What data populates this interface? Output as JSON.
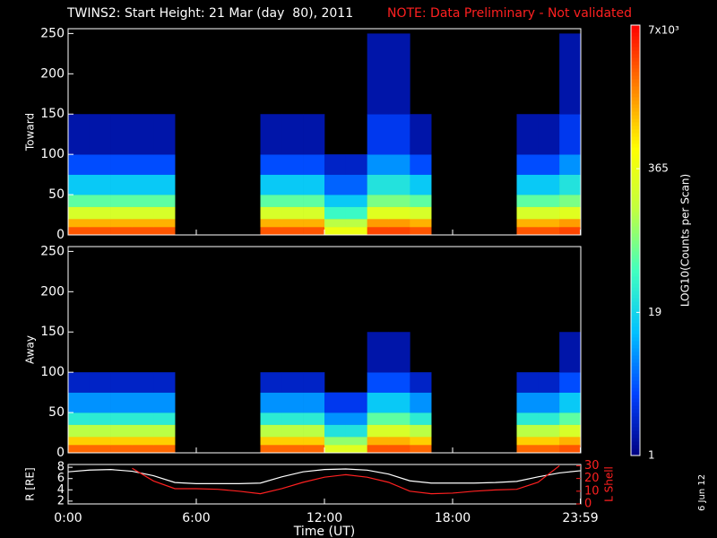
{
  "title": "TWINS2: Start Height: 21 Mar (day  80), 2011",
  "note": "NOTE: Data Preliminary - Not validated",
  "side_text": "6 Jun 12",
  "chart_data": [
    {
      "type": "heatmap",
      "ylabel": "Toward",
      "xlim": [
        0,
        24
      ],
      "ylim": [
        0,
        256
      ],
      "yticks": [
        0,
        50,
        100,
        150,
        200,
        250
      ],
      "xticks": [
        0,
        6,
        12,
        18,
        23.98
      ],
      "xbins": [
        0,
        1,
        2,
        3,
        4,
        5,
        6,
        7,
        8,
        9,
        10,
        11,
        12,
        13,
        14,
        15,
        16,
        17,
        18,
        19,
        20,
        21,
        22,
        23,
        24
      ],
      "ybins": [
        0,
        10,
        20,
        35,
        50,
        75,
        100,
        150,
        250
      ],
      "z": [
        [
          3000,
          3000,
          3000,
          3000,
          3000,
          null,
          null,
          null,
          null,
          3000,
          3000,
          3000,
          400,
          400,
          3500,
          3500,
          3000,
          null,
          null,
          null,
          null,
          3000,
          3000,
          3500
        ],
        [
          1200,
          1200,
          1200,
          1200,
          1200,
          null,
          null,
          null,
          null,
          1200,
          1200,
          1200,
          150,
          150,
          1500,
          1500,
          1200,
          null,
          null,
          null,
          null,
          1200,
          1200,
          1500
        ],
        [
          250,
          250,
          250,
          250,
          250,
          null,
          null,
          null,
          null,
          250,
          250,
          250,
          40,
          40,
          300,
          300,
          250,
          null,
          null,
          null,
          null,
          250,
          250,
          300
        ],
        [
          60,
          60,
          60,
          60,
          60,
          null,
          null,
          null,
          null,
          60,
          60,
          60,
          15,
          15,
          80,
          80,
          60,
          null,
          null,
          null,
          null,
          60,
          60,
          80
        ],
        [
          15,
          15,
          15,
          15,
          15,
          null,
          null,
          null,
          null,
          15,
          15,
          15,
          5,
          5,
          25,
          25,
          15,
          null,
          null,
          null,
          null,
          15,
          15,
          25
        ],
        [
          4,
          4,
          4,
          4,
          4,
          null,
          null,
          null,
          null,
          4,
          4,
          4,
          2,
          2,
          8,
          8,
          4,
          null,
          null,
          null,
          null,
          4,
          4,
          8
        ],
        [
          1.5,
          1.5,
          1.5,
          1.5,
          1.5,
          null,
          null,
          null,
          null,
          1.5,
          1.5,
          1.5,
          null,
          null,
          3,
          3,
          1.5,
          null,
          null,
          null,
          null,
          1.5,
          1.5,
          3
        ],
        [
          null,
          null,
          null,
          null,
          null,
          null,
          null,
          null,
          null,
          null,
          null,
          null,
          null,
          null,
          1.5,
          1.5,
          null,
          null,
          null,
          null,
          null,
          null,
          null,
          1.5
        ]
      ]
    },
    {
      "type": "heatmap",
      "ylabel": "Away",
      "xlim": [
        0,
        24
      ],
      "ylim": [
        0,
        256
      ],
      "yticks": [
        0,
        50,
        100,
        150,
        200,
        250
      ],
      "xticks": [
        0,
        6,
        12,
        18,
        23.98
      ],
      "xbins": [
        0,
        1,
        2,
        3,
        4,
        5,
        6,
        7,
        8,
        9,
        10,
        11,
        12,
        13,
        14,
        15,
        16,
        17,
        18,
        19,
        20,
        21,
        22,
        23,
        24
      ],
      "ybins": [
        0,
        10,
        20,
        35,
        50,
        75,
        100,
        150,
        250
      ],
      "z": [
        [
          2500,
          2500,
          2500,
          2500,
          2500,
          null,
          null,
          null,
          null,
          2500,
          2500,
          2500,
          300,
          300,
          3000,
          3000,
          2500,
          null,
          null,
          null,
          null,
          2500,
          2500,
          3000
        ],
        [
          900,
          900,
          900,
          900,
          900,
          null,
          null,
          null,
          null,
          900,
          900,
          900,
          100,
          100,
          1200,
          1200,
          900,
          null,
          null,
          null,
          null,
          900,
          900,
          1200
        ],
        [
          150,
          150,
          150,
          150,
          150,
          null,
          null,
          null,
          null,
          150,
          150,
          150,
          25,
          25,
          250,
          250,
          150,
          null,
          null,
          null,
          null,
          150,
          150,
          250
        ],
        [
          30,
          30,
          30,
          30,
          30,
          null,
          null,
          null,
          null,
          30,
          30,
          30,
          8,
          8,
          60,
          60,
          30,
          null,
          null,
          null,
          null,
          30,
          30,
          60
        ],
        [
          8,
          8,
          8,
          8,
          8,
          null,
          null,
          null,
          null,
          8,
          8,
          8,
          3,
          3,
          15,
          15,
          8,
          null,
          null,
          null,
          null,
          8,
          8,
          15
        ],
        [
          2,
          2,
          2,
          2,
          2,
          null,
          null,
          null,
          null,
          2,
          2,
          2,
          null,
          null,
          4,
          4,
          2,
          null,
          null,
          null,
          null,
          2,
          2,
          4
        ],
        [
          null,
          null,
          null,
          null,
          null,
          null,
          null,
          null,
          null,
          null,
          null,
          null,
          null,
          null,
          1.5,
          1.5,
          null,
          null,
          null,
          null,
          null,
          null,
          null,
          1.5
        ],
        [
          null,
          null,
          null,
          null,
          null,
          null,
          null,
          null,
          null,
          null,
          null,
          null,
          null,
          null,
          null,
          null,
          null,
          null,
          null,
          null,
          null,
          null,
          null,
          null
        ]
      ]
    },
    {
      "type": "line",
      "xlabel": "Time (UT)",
      "ylabel": "R [RE]",
      "y2label": "L Shell",
      "x": [
        0,
        1,
        2,
        3,
        4,
        5,
        6,
        7,
        8,
        9,
        10,
        11,
        12,
        13,
        14,
        15,
        16,
        17,
        18,
        19,
        20,
        21,
        22,
        23,
        24
      ],
      "xlim": [
        0,
        24
      ],
      "xticks": [
        {
          "value": 0,
          "label": "0:00"
        },
        {
          "value": 6,
          "label": "6:00"
        },
        {
          "value": 12,
          "label": "12:00"
        },
        {
          "value": 18,
          "label": "18:00"
        },
        {
          "value": 23.98,
          "label": "23:59"
        }
      ],
      "ylim": [
        1.5,
        8.5
      ],
      "yticks": [
        2,
        4,
        6,
        8
      ],
      "y2lim": [
        0,
        31
      ],
      "y2ticks": [
        0,
        10,
        20,
        30
      ],
      "series": [
        {
          "name": "R",
          "color": "#ffffff",
          "values": [
            7.2,
            7.5,
            7.6,
            7.3,
            6.5,
            5.3,
            5.1,
            5.1,
            5.1,
            5.2,
            6.3,
            7.2,
            7.6,
            7.7,
            7.5,
            6.8,
            5.6,
            5.2,
            5.2,
            5.2,
            5.3,
            5.5,
            6.3,
            7.0,
            7.4
          ]
        },
        {
          "name": "L Shell",
          "color": "#ff2020",
          "axis": "y2",
          "values": [
            null,
            null,
            null,
            28,
            18,
            12,
            12,
            11.5,
            10,
            8,
            12,
            17,
            21,
            23,
            21,
            17,
            10,
            8,
            8.5,
            10,
            11,
            11.5,
            17,
            30,
            null
          ]
        }
      ]
    },
    {
      "type": "colorbar",
      "label": "LOG10(Counts per Scan)",
      "log": true,
      "lim": [
        1,
        7000
      ],
      "colormap": [
        "#000080",
        "#0040ff",
        "#00c0ff",
        "#40ffc0",
        "#c0ff40",
        "#ffff00",
        "#ff8000",
        "#ff0000"
      ],
      "ticks": [
        1,
        19,
        365,
        {
          "value": 7000,
          "label": "7x10³"
        }
      ]
    }
  ]
}
